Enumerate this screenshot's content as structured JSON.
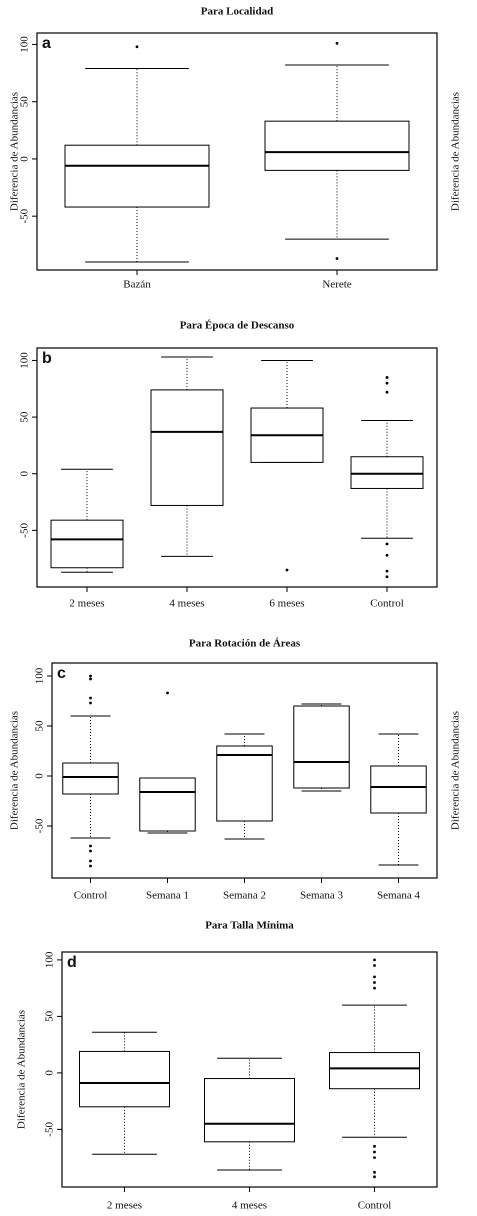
{
  "chart_data": [
    {
      "type": "box",
      "title": "Para Localidad",
      "annotation": "a",
      "ylabel": "Diferencia de Abundancias",
      "right_label": "Diferencia de Abundancias",
      "categories": [
        "Bazán",
        "Nerete"
      ],
      "ylim": [
        -97,
        110
      ],
      "yticks": [
        -50,
        0,
        50,
        100
      ],
      "color": "#000000",
      "min": [
        -90,
        -70
      ],
      "q1": [
        -42,
        -10
      ],
      "median": [
        -6,
        6
      ],
      "q3": [
        12,
        33
      ],
      "max": [
        79,
        82
      ],
      "outliers": [
        [
          98
        ],
        [
          101,
          -87
        ]
      ]
    },
    {
      "type": "box",
      "title": "Para Época de Descanso",
      "annotation": "b",
      "categories": [
        "2 meses",
        "4 meses",
        "6 meses",
        "Control"
      ],
      "ylim": [
        -100,
        111
      ],
      "yticks": [
        -50,
        0,
        50,
        100
      ],
      "color": "#000000",
      "min": [
        -87,
        -73,
        10,
        -57
      ],
      "q1": [
        -83,
        -28,
        10,
        -13
      ],
      "median": [
        -58,
        37,
        34,
        0
      ],
      "q3": [
        -41,
        74,
        58,
        15
      ],
      "max": [
        4,
        103,
        100,
        47
      ],
      "outliers": [
        [],
        [],
        [
          -85
        ],
        [
          85,
          80,
          72,
          -62,
          -72,
          -86,
          -91
        ]
      ]
    },
    {
      "type": "box",
      "title": "Para Rotación de Áreas",
      "annotation": "c",
      "ylabel": "Diferencia de Abundancias",
      "right_label": "Diferencia de Abundancias",
      "categories": [
        "Control",
        "Semana 1",
        "Semana 2",
        "Semana 3",
        "Semana 4"
      ],
      "ylim": [
        -102,
        113
      ],
      "yticks": [
        -50,
        0,
        50,
        100
      ],
      "color": "#000000",
      "min": [
        -62,
        -57,
        -63,
        -15,
        -89
      ],
      "q1": [
        -18,
        -55,
        -45,
        -12,
        -37
      ],
      "median": [
        -1,
        -16,
        21,
        14,
        -11
      ],
      "q3": [
        13,
        -2,
        30,
        70,
        10
      ],
      "max": [
        60,
        -2,
        42,
        72,
        42
      ],
      "outliers": [
        [
          100,
          97,
          78,
          73,
          -70,
          -75,
          -85,
          -90
        ],
        [
          83
        ],
        [],
        [],
        []
      ]
    },
    {
      "type": "box",
      "title": "Para Talla Mínima",
      "annotation": "d",
      "ylabel": "Diferencia de Abundancias",
      "categories": [
        "2 meses",
        "4 meses",
        "Control"
      ],
      "ylim": [
        -101,
        107
      ],
      "yticks": [
        -50,
        0,
        50,
        100
      ],
      "color": "#000000",
      "min": [
        -72,
        -86,
        -57
      ],
      "q1": [
        -30,
        -61,
        -14
      ],
      "median": [
        -9,
        -45,
        4
      ],
      "q3": [
        19,
        -5,
        18
      ],
      "max": [
        36,
        13,
        60
      ],
      "outliers": [
        [],
        [],
        [
          100,
          95,
          85,
          80,
          75,
          -65,
          -70,
          -75,
          -88,
          -92
        ]
      ]
    }
  ]
}
